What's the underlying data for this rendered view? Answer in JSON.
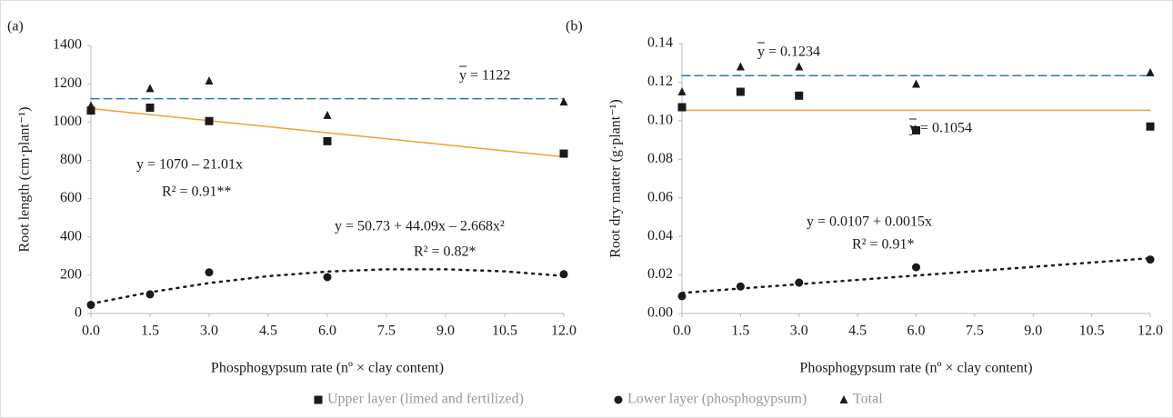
{
  "chart_data": [
    {
      "type": "scatter",
      "panel_label": "(a)",
      "x_label": "Phosphogypsum rate (nº × clay content)",
      "y_label": "Root length (cm·plant⁻¹)",
      "x": [
        0,
        1.5,
        3,
        6,
        12
      ],
      "series": [
        {
          "name": "Upper layer (limed and fertilized)",
          "marker": "square",
          "color": "#1a1a1a",
          "values": [
            1060,
            1075,
            1005,
            900,
            835
          ]
        },
        {
          "name": "Lower layer (phosphogypsum)",
          "marker": "circle",
          "color": "#1a1a1a",
          "values": [
            45,
            100,
            215,
            190,
            205
          ]
        },
        {
          "name": "Total",
          "marker": "triangle",
          "color": "#1a1a1a",
          "values": [
            1085,
            1175,
            1215,
            1035,
            1105
          ]
        }
      ],
      "lines": [
        {
          "style": "dashed",
          "color": "#2e75b6",
          "x": [
            0,
            12
          ],
          "values": [
            1122,
            1122
          ]
        },
        {
          "style": "solid",
          "color": "#f0a030",
          "x": [
            0,
            12
          ],
          "values": [
            1070,
            818
          ]
        },
        {
          "style": "dotted",
          "color": "#1a1a1a",
          "x": [
            0,
            1.5,
            3,
            4.5,
            6,
            7.5,
            9,
            10.5,
            12
          ],
          "values": [
            51,
            111,
            159,
            195,
            219,
            231,
            231,
            220,
            196
          ]
        }
      ],
      "annotations": [
        "y = 1122",
        "y = 1070 – 21.01x",
        "R² = 0.91**",
        "y =  50.73 + 44.09x – 2.668x²",
        "R² = 0.82*"
      ],
      "xlim": [
        0,
        12
      ],
      "xticks": [
        {
          "value": 0,
          "label": "0.0"
        },
        {
          "value": 1.5,
          "label": "1.5"
        },
        {
          "value": 3,
          "label": "3.0"
        },
        {
          "value": 4.5,
          "label": "4.5"
        },
        {
          "value": 6,
          "label": "6.0"
        },
        {
          "value": 7.5,
          "label": "7.5"
        },
        {
          "value": 9,
          "label": "9.0"
        },
        {
          "value": 10.5,
          "label": "10.5"
        },
        {
          "value": 12,
          "label": "12.0"
        }
      ],
      "ylim": [
        0,
        1400
      ],
      "yticks": [
        0,
        200,
        400,
        600,
        800,
        1000,
        1200,
        1400
      ],
      "legend": "bottom"
    },
    {
      "type": "scatter",
      "panel_label": "(b)",
      "x_label": "Phosphogypsum rate (nº × clay content)",
      "y_label": "Root dry matter (g·plant⁻¹)",
      "x": [
        0,
        1.5,
        3,
        6,
        12
      ],
      "series": [
        {
          "marker": "square",
          "color": "#1a1a1a",
          "values": [
            0.107,
            0.115,
            0.113,
            0.095,
            0.097
          ]
        },
        {
          "marker": "circle",
          "color": "#1a1a1a",
          "values": [
            0.009,
            0.014,
            0.016,
            0.024,
            0.028
          ]
        },
        {
          "marker": "triangle",
          "color": "#1a1a1a",
          "values": [
            0.115,
            0.128,
            0.128,
            0.119,
            0.125
          ]
        }
      ],
      "lines": [
        {
          "style": "dashed",
          "color": "#2e75b6",
          "x": [
            0,
            12
          ],
          "values": [
            0.1234,
            0.1234
          ]
        },
        {
          "style": "solid",
          "color": "#f0a030",
          "x": [
            0,
            12
          ],
          "values": [
            0.1054,
            0.1054
          ]
        },
        {
          "style": "dotted",
          "color": "#1a1a1a",
          "x": [
            0,
            12
          ],
          "values": [
            0.0107,
            0.0287
          ]
        }
      ],
      "annotations": [
        "y = 0.1234",
        "y = 0.1054",
        "y =  0.0107 + 0.0015x",
        "R² = 0.91*"
      ],
      "xlim": [
        0,
        12
      ],
      "xticks": [
        {
          "value": 0,
          "label": "0.0"
        },
        {
          "value": 1.5,
          "label": "1.5"
        },
        {
          "value": 3,
          "label": "3.0"
        },
        {
          "value": 4.5,
          "label": "4.5"
        },
        {
          "value": 6,
          "label": "6.0"
        },
        {
          "value": 7.5,
          "label": "7.5"
        },
        {
          "value": 9,
          "label": "9.0"
        },
        {
          "value": 10.5,
          "label": "10.5"
        },
        {
          "value": 12,
          "label": "12.0"
        }
      ],
      "ylim": [
        0,
        0.14
      ],
      "yticks": [
        {
          "value": 0,
          "label": "0.00"
        },
        {
          "value": 0.02,
          "label": "0.02"
        },
        {
          "value": 0.04,
          "label": "0.04"
        },
        {
          "value": 0.06,
          "label": "0.06"
        },
        {
          "value": 0.08,
          "label": "0.08"
        },
        {
          "value": 0.1,
          "label": "0.10"
        },
        {
          "value": 0.12,
          "label": "0.12"
        },
        {
          "value": 0.14,
          "label": "0.14"
        }
      ]
    }
  ]
}
